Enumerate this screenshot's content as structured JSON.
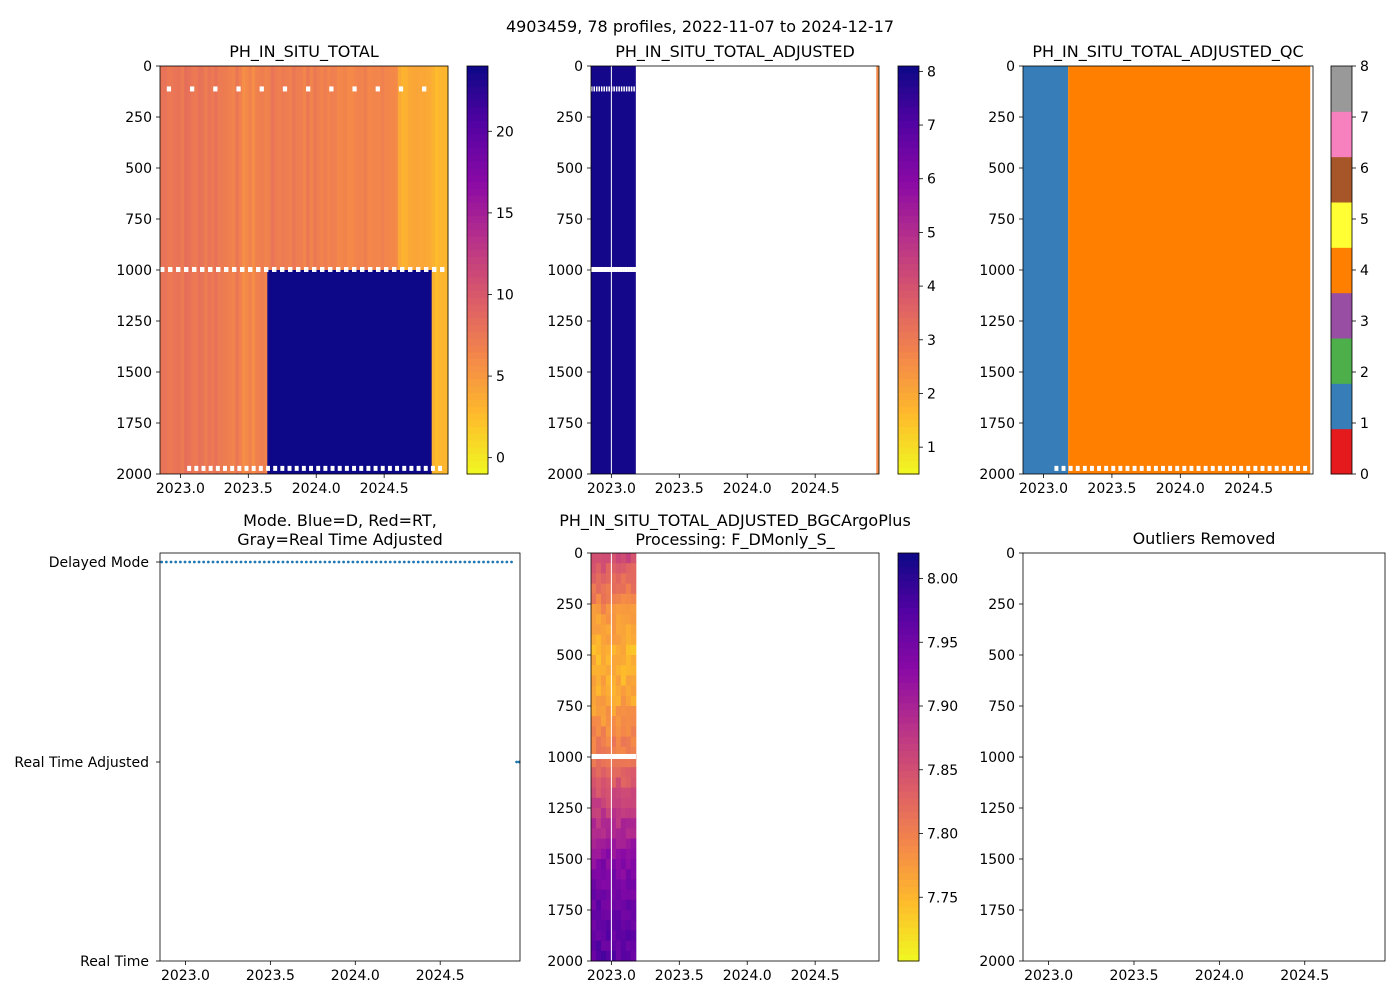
{
  "figure": {
    "suptitle": "4903459, 78 profiles, 2022-11-07 to 2024-12-17"
  },
  "colors": {
    "plasma_low": "#f0f921",
    "plasma_high": "#0d0887",
    "qc_palette": [
      "#e41a1c",
      "#377eb8",
      "#4daf4a",
      "#984ea3",
      "#ff7f00",
      "#ffff33",
      "#a65628",
      "#f781bf",
      "#999999"
    ],
    "mode_dot": "#1f77b4"
  },
  "chart_data": [
    {
      "id": "raw",
      "type": "heatmap",
      "title": "PH_IN_SITU_TOTAL",
      "x_range": [
        2022.85,
        2024.97
      ],
      "y_range": [
        0,
        2000
      ],
      "y_inverted": true,
      "x_ticks": [
        "2023.0",
        "2023.5",
        "2024.0",
        "2024.5"
      ],
      "y_ticks": [
        "0",
        "250",
        "500",
        "750",
        "1000",
        "1250",
        "1500",
        "1750",
        "2000"
      ],
      "colormap": "plasma_r",
      "clim": [
        -1,
        24
      ],
      "colorbar_ticks": [
        "0",
        "5",
        "10",
        "15",
        "20"
      ],
      "bands": [
        {
          "from": 2022.85,
          "to": 2023.08,
          "value": 7.8
        },
        {
          "from": 2023.08,
          "to": 2023.2,
          "value": 7.6
        },
        {
          "from": 2023.2,
          "to": 2023.3,
          "value": 7.7
        },
        {
          "from": 2023.3,
          "to": 2023.43,
          "value": 7.1
        },
        {
          "from": 2023.43,
          "to": 2023.55,
          "value": 6.2
        },
        {
          "from": 2023.55,
          "to": 2023.64,
          "value": 6.8
        },
        {
          "from": 2023.64,
          "to": 2023.9,
          "value": 7.2
        },
        {
          "from": 2023.9,
          "to": 2024.08,
          "value": 6.9
        },
        {
          "from": 2024.08,
          "to": 2024.3,
          "value": 6.6
        },
        {
          "from": 2024.3,
          "to": 2024.6,
          "value": 6.4
        },
        {
          "from": 2024.6,
          "to": 2024.85,
          "value": 3.6
        },
        {
          "from": 2024.85,
          "to": 2024.97,
          "value": 3.2
        }
      ],
      "deep_block": {
        "from": 2023.64,
        "to": 2024.85,
        "depth_from": 1000,
        "depth_to": 2000,
        "value": 24
      }
    },
    {
      "id": "adjusted",
      "type": "heatmap",
      "title": "PH_IN_SITU_TOTAL_ADJUSTED",
      "x_range": [
        2022.85,
        2024.97
      ],
      "y_range": [
        0,
        2000
      ],
      "y_inverted": true,
      "x_ticks": [
        "2023.0",
        "2023.5",
        "2024.0",
        "2024.5"
      ],
      "y_ticks": [
        "0",
        "250",
        "500",
        "750",
        "1000",
        "1250",
        "1500",
        "1750",
        "2000"
      ],
      "colormap": "plasma_r",
      "clim": [
        0.5,
        8.1
      ],
      "colorbar_ticks": [
        "1",
        "2",
        "3",
        "4",
        "5",
        "6",
        "7",
        "8"
      ],
      "bands": [
        {
          "from": 2022.85,
          "to": 2023.18,
          "value": 8.0
        },
        {
          "from": 2024.95,
          "to": 2024.97,
          "value": 2.6
        }
      ]
    },
    {
      "id": "qc",
      "type": "heatmap",
      "title": "PH_IN_SITU_TOTAL_ADJUSTED_QC",
      "x_range": [
        2022.85,
        2024.97
      ],
      "y_range": [
        0,
        2000
      ],
      "y_inverted": true,
      "x_ticks": [
        "2023.0",
        "2023.5",
        "2024.0",
        "2024.5"
      ],
      "y_ticks": [
        "0",
        "250",
        "500",
        "750",
        "1000",
        "1250",
        "1500",
        "1750",
        "2000"
      ],
      "colormap": "qc_categorical",
      "clim": [
        0,
        8
      ],
      "colorbar_ticks": [
        "0",
        "1",
        "2",
        "3",
        "4",
        "5",
        "6",
        "7",
        "8"
      ],
      "bands": [
        {
          "from": 2022.85,
          "to": 2023.18,
          "value": 1
        },
        {
          "from": 2023.18,
          "to": 2024.95,
          "value": 4
        }
      ]
    },
    {
      "id": "mode",
      "type": "scatter",
      "title": "Mode. Blue=D, Red=RT,",
      "title_line2": "Gray=Real Time Adjusted",
      "x_range": [
        2022.85,
        2024.97
      ],
      "x_ticks": [
        "2023.0",
        "2023.5",
        "2024.0",
        "2024.5"
      ],
      "y_categories": [
        "Delayed Mode",
        "Real Time Adjusted",
        "Real Time"
      ],
      "series": [
        {
          "name": "Delayed Mode",
          "x_from": 2022.86,
          "x_to": 2024.92,
          "count": 76
        },
        {
          "name": "Real Time Adjusted",
          "x_values": [
            2024.95,
            2024.965
          ]
        }
      ]
    },
    {
      "id": "bgc",
      "type": "heatmap",
      "title": "PH_IN_SITU_TOTAL_ADJUSTED_BGCArgoPlus",
      "title_line2": "Processing: F_DMonly_S_",
      "x_range": [
        2022.85,
        2024.97
      ],
      "y_range": [
        0,
        2000
      ],
      "y_inverted": true,
      "x_ticks": [
        "2023.0",
        "2023.5",
        "2024.0",
        "2024.5"
      ],
      "y_ticks": [
        "0",
        "250",
        "500",
        "750",
        "1000",
        "1250",
        "1500",
        "1750",
        "2000"
      ],
      "colormap": "plasma_r",
      "clim": [
        7.7,
        8.02
      ],
      "colorbar_ticks": [
        "7.75",
        "7.80",
        "7.85",
        "7.90",
        "7.95",
        "8.00"
      ],
      "data_x": [
        2022.85,
        2023.18
      ],
      "profile": [
        {
          "depth": 0,
          "value": 7.86
        },
        {
          "depth": 150,
          "value": 7.82
        },
        {
          "depth": 300,
          "value": 7.78
        },
        {
          "depth": 500,
          "value": 7.75
        },
        {
          "depth": 750,
          "value": 7.77
        },
        {
          "depth": 1000,
          "value": 7.81
        },
        {
          "depth": 1250,
          "value": 7.87
        },
        {
          "depth": 1500,
          "value": 7.93
        },
        {
          "depth": 1750,
          "value": 7.96
        },
        {
          "depth": 2000,
          "value": 7.97
        }
      ]
    },
    {
      "id": "outliers",
      "type": "scatter",
      "title": "Outliers Removed",
      "x_range": [
        2022.85,
        2024.97
      ],
      "y_range": [
        0,
        2000
      ],
      "y_inverted": true,
      "x_ticks": [
        "2023.0",
        "2023.5",
        "2024.0",
        "2024.5"
      ],
      "y_ticks": [
        "0",
        "250",
        "500",
        "750",
        "1000",
        "1250",
        "1500",
        "1750",
        "2000"
      ],
      "points": []
    }
  ]
}
